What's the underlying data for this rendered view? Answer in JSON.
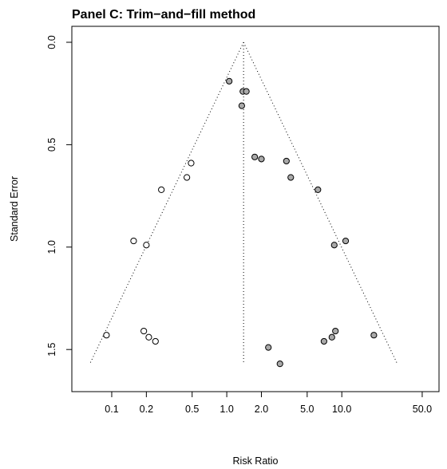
{
  "chart_data": {
    "type": "scatter",
    "title": "Panel C: Trim−and−fill method",
    "xlabel": "Risk Ratio",
    "ylabel": "Standard Error",
    "x_scale": "log",
    "y_reversed": true,
    "xlim": [
      0.045,
      70
    ],
    "ylim": [
      0,
      1.62
    ],
    "x_ticks": [
      {
        "value": 0.1,
        "label": "0.1"
      },
      {
        "value": 0.2,
        "label": "0.2"
      },
      {
        "value": 0.5,
        "label": "0.5"
      },
      {
        "value": 1.0,
        "label": "1.0"
      },
      {
        "value": 2.0,
        "label": "2.0"
      },
      {
        "value": 5.0,
        "label": "5.0"
      },
      {
        "value": 10.0,
        "label": "10.0"
      },
      {
        "value": 50.0,
        "label": "50.0"
      }
    ],
    "y_ticks": [
      {
        "value": 0.0,
        "label": "0.0"
      },
      {
        "value": 0.5,
        "label": "0.5"
      },
      {
        "value": 1.0,
        "label": "1.0"
      },
      {
        "value": 1.5,
        "label": "1.5"
      }
    ],
    "pooled_estimate": 1.4,
    "funnel_max_se": 1.57,
    "series": [
      {
        "fill": "#ffffff",
        "points": [
          {
            "x": 0.09,
            "y": 1.43
          },
          {
            "x": 0.155,
            "y": 0.97
          },
          {
            "x": 0.19,
            "y": 1.41
          },
          {
            "x": 0.2,
            "y": 0.99
          },
          {
            "x": 0.21,
            "y": 1.44
          },
          {
            "x": 0.24,
            "y": 1.46
          },
          {
            "x": 0.27,
            "y": 0.72
          },
          {
            "x": 0.45,
            "y": 0.66
          },
          {
            "x": 0.49,
            "y": 0.59
          }
        ]
      },
      {
        "fill": "#a9a9a9",
        "points": [
          {
            "x": 1.05,
            "y": 0.19
          },
          {
            "x": 1.38,
            "y": 0.24
          },
          {
            "x": 1.48,
            "y": 0.24
          },
          {
            "x": 1.35,
            "y": 0.31
          },
          {
            "x": 1.75,
            "y": 0.56
          },
          {
            "x": 2.0,
            "y": 0.57
          },
          {
            "x": 3.3,
            "y": 0.58
          },
          {
            "x": 3.6,
            "y": 0.66
          },
          {
            "x": 6.2,
            "y": 0.72
          },
          {
            "x": 8.6,
            "y": 0.99
          },
          {
            "x": 10.8,
            "y": 0.97
          },
          {
            "x": 2.3,
            "y": 1.49
          },
          {
            "x": 2.9,
            "y": 1.57
          },
          {
            "x": 7.0,
            "y": 1.46
          },
          {
            "x": 8.2,
            "y": 1.44
          },
          {
            "x": 8.8,
            "y": 1.41
          },
          {
            "x": 19.0,
            "y": 1.43
          }
        ]
      }
    ]
  }
}
